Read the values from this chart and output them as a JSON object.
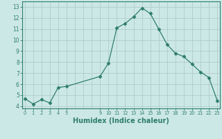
{
  "x": [
    0,
    1,
    2,
    3,
    4,
    5,
    9,
    10,
    11,
    12,
    13,
    14,
    15,
    16,
    17,
    18,
    19,
    20,
    21,
    22,
    23
  ],
  "y": [
    4.7,
    4.2,
    4.6,
    4.3,
    5.7,
    5.8,
    6.7,
    7.9,
    11.1,
    11.5,
    12.1,
    12.9,
    12.4,
    11.0,
    9.6,
    8.8,
    8.5,
    7.8,
    7.1,
    6.6,
    4.5
  ],
  "line_color": "#2e7d6e",
  "marker": "D",
  "marker_size": 2.5,
  "bg_color": "#cce8e6",
  "grid_color": "#b0ccca",
  "axes_color": "#2e7d6e",
  "tick_color": "#2e7d6e",
  "xlabel": "Humidex (Indice chaleur)",
  "xlabel_fontsize": 7,
  "ylabel_ticks": [
    4,
    5,
    6,
    7,
    8,
    9,
    10,
    11,
    12,
    13
  ],
  "xticks": [
    0,
    1,
    2,
    3,
    4,
    5,
    9,
    10,
    11,
    12,
    13,
    14,
    15,
    16,
    17,
    18,
    19,
    20,
    21,
    22,
    23
  ],
  "xlim": [
    -0.3,
    23.3
  ],
  "ylim": [
    3.8,
    13.5
  ]
}
